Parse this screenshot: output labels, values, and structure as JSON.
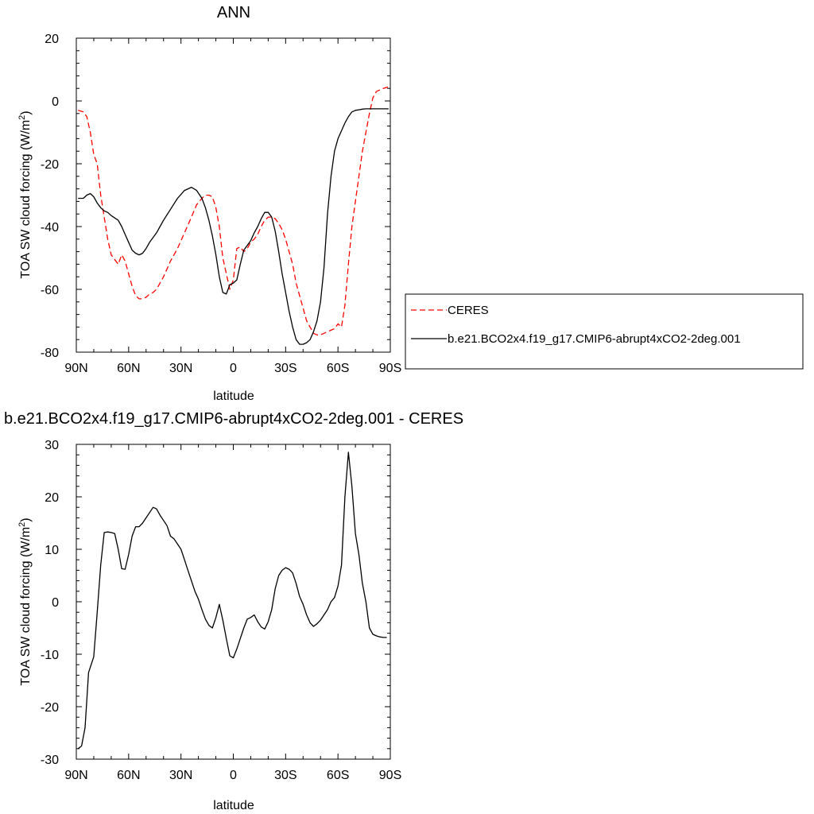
{
  "chart_data": [
    {
      "type": "line",
      "title": "ANN",
      "xlabel": "latitude",
      "ylabel": "TOA SW cloud forcing (W/m",
      "ylabel_sup": "2",
      "ylabel_close": ")",
      "xlim": [
        90,
        -90
      ],
      "ylim": [
        -80,
        20
      ],
      "x_ticks": [
        90,
        60,
        30,
        0,
        -30,
        -60,
        -90
      ],
      "x_tick_labels": [
        "90N",
        "60N",
        "30N",
        "0",
        "30S",
        "60S",
        "90S"
      ],
      "y_ticks": [
        -80,
        -60,
        -40,
        -20,
        0,
        20
      ],
      "y_tick_labels": [
        "-80",
        "-60",
        "-40",
        "-20",
        "0",
        "20"
      ],
      "series": [
        {
          "name": "CERES",
          "color": "#ff0000",
          "dash": "dashed",
          "x": [
            89,
            86,
            84,
            82,
            80,
            78,
            76,
            74,
            72,
            70,
            66,
            64,
            62,
            60,
            58,
            56,
            54,
            52,
            50,
            48,
            46,
            44,
            42,
            40,
            36,
            32,
            28,
            24,
            21,
            18,
            16,
            14,
            12,
            10,
            8,
            6,
            4,
            2,
            0,
            -2,
            -4,
            -6,
            -8,
            -10,
            -12,
            -14,
            -16,
            -18,
            -20,
            -22,
            -24,
            -26,
            -28,
            -30,
            -32,
            -34,
            -36,
            -38,
            -40,
            -42,
            -44,
            -46,
            -48,
            -50,
            -52,
            -54,
            -56,
            -58,
            -60,
            -62,
            -64,
            -66,
            -68,
            -70,
            -72,
            -74,
            -76,
            -78,
            -80,
            -82,
            -84,
            -86,
            -89
          ],
          "y": [
            -3,
            -3.5,
            -5,
            -10,
            -17,
            -20,
            -30,
            -37,
            -44,
            -49,
            -52,
            -49,
            -51,
            -55,
            -59,
            -62,
            -63,
            -63,
            -62.5,
            -61.5,
            -61,
            -60,
            -58,
            -56,
            -51,
            -47,
            -42,
            -37,
            -33,
            -31,
            -30,
            -30,
            -30.5,
            -34,
            -40,
            -50,
            -55,
            -60,
            -57,
            -47,
            -46.5,
            -48,
            -47,
            -45,
            -44,
            -42.5,
            -40,
            -38,
            -37,
            -37,
            -37.5,
            -39,
            -41,
            -44,
            -48,
            -52,
            -58,
            -62,
            -66,
            -70,
            -72,
            -74,
            -74.5,
            -74.5,
            -74,
            -73.5,
            -73,
            -72.5,
            -71,
            -72,
            -65,
            -52,
            -40,
            -32,
            -24,
            -16,
            -10,
            -4,
            1,
            3,
            3.5,
            4,
            4.5
          ]
        },
        {
          "name": "b.e21.BCO2x4.f19_g17.CMIP6-abrupt4xCO2-2deg.001",
          "color": "#000000",
          "dash": "solid",
          "x": [
            89,
            86,
            84,
            82,
            80,
            78,
            76,
            74,
            72,
            70,
            66,
            64,
            62,
            60,
            58,
            56,
            54,
            52,
            50,
            48,
            46,
            44,
            42,
            40,
            36,
            32,
            28,
            24,
            21,
            18,
            16,
            14,
            12,
            10,
            8,
            6,
            4,
            2,
            0,
            -2,
            -4,
            -6,
            -8,
            -10,
            -12,
            -14,
            -16,
            -18,
            -20,
            -22,
            -24,
            -26,
            -28,
            -30,
            -32,
            -34,
            -36,
            -38,
            -40,
            -42,
            -44,
            -46,
            -48,
            -50,
            -52,
            -54,
            -56,
            -58,
            -60,
            -62,
            -64,
            -66,
            -68,
            -70,
            -72,
            -74,
            -76,
            -78,
            -80,
            -82,
            -84,
            -86,
            -89
          ],
          "y": [
            -31,
            -31,
            -30,
            -29.5,
            -30.5,
            -32.5,
            -34,
            -35,
            -35.5,
            -36.5,
            -38,
            -40,
            -42.5,
            -45,
            -47.5,
            -48.5,
            -49,
            -48.5,
            -47,
            -45,
            -43.5,
            -42,
            -40,
            -38,
            -34.5,
            -31,
            -28.5,
            -27.5,
            -28.5,
            -31,
            -34,
            -38,
            -43,
            -49,
            -56,
            -61,
            -61.5,
            -58.5,
            -58,
            -57,
            -52,
            -47.5,
            -46,
            -44.5,
            -42,
            -40,
            -37.5,
            -35.5,
            -35.5,
            -37,
            -41.5,
            -48,
            -55,
            -61,
            -67,
            -72,
            -76,
            -77.5,
            -77.5,
            -77,
            -76,
            -73.5,
            -70,
            -64,
            -53,
            -36,
            -24,
            -16,
            -12,
            -9.5,
            -7,
            -5,
            -3.5,
            -3,
            -2.8,
            -2.6,
            -2.5,
            -2.5,
            -2.5,
            -2.5,
            -2.5,
            -2.5,
            -2.5
          ]
        }
      ],
      "legend": {
        "placement": "right"
      }
    },
    {
      "type": "line",
      "title": "b.e21.BCO2x4.f19_g17.CMIP6-abrupt4xCO2-2deg.001 - CERES",
      "xlabel": "latitude",
      "ylabel": "TOA SW cloud forcing (W/m",
      "ylabel_sup": "2",
      "ylabel_close": ")",
      "xlim": [
        90,
        -90
      ],
      "ylim": [
        -30,
        30
      ],
      "x_ticks": [
        90,
        60,
        30,
        0,
        -30,
        -60,
        -90
      ],
      "x_tick_labels": [
        "90N",
        "60N",
        "30N",
        "0",
        "30S",
        "60S",
        "90S"
      ],
      "y_ticks": [
        -30,
        -20,
        -10,
        0,
        10,
        20,
        30
      ],
      "y_tick_labels": [
        "-30",
        "-20",
        "-10",
        "0",
        "10",
        "20",
        "30"
      ],
      "series": [
        {
          "color": "#000000",
          "dash": "solid",
          "x": [
            89,
            87,
            85,
            83,
            80,
            78,
            76,
            74,
            72,
            70,
            68,
            66,
            64,
            62,
            60,
            58,
            56,
            54,
            52,
            50,
            48,
            46,
            44,
            42,
            40,
            38,
            36,
            34,
            32,
            30,
            28,
            26,
            24,
            22,
            20,
            18,
            16,
            14,
            12,
            10,
            8,
            6,
            4,
            2,
            0,
            -2,
            -4,
            -6,
            -8,
            -10,
            -12,
            -14,
            -16,
            -18,
            -20,
            -22,
            -24,
            -26,
            -28,
            -30,
            -32,
            -34,
            -36,
            -38,
            -40,
            -42,
            -44,
            -46,
            -48,
            -50,
            -52,
            -54,
            -56,
            -58,
            -60,
            -62,
            -64,
            -66,
            -68,
            -70,
            -72,
            -74,
            -76,
            -78,
            -80,
            -82,
            -84,
            -86,
            -88
          ],
          "y": [
            -28,
            -27.5,
            -24,
            -13.5,
            -10.5,
            -2,
            7,
            13.2,
            13.3,
            13.2,
            13,
            10,
            6.3,
            6.2,
            9,
            12.5,
            14.3,
            14.3,
            15,
            16,
            17,
            18,
            17.7,
            16.5,
            15.5,
            14.5,
            12.5,
            12,
            11,
            10,
            8,
            6,
            4,
            2,
            0.5,
            -1.5,
            -3.3,
            -4.5,
            -5,
            -3,
            -0.5,
            -3.5,
            -7,
            -10.3,
            -10.7,
            -9,
            -7,
            -5,
            -3.3,
            -3,
            -2.5,
            -3.8,
            -4.8,
            -5.2,
            -3.8,
            -1.5,
            2.5,
            5,
            6,
            6.5,
            6.2,
            5.5,
            3.5,
            1,
            -0.5,
            -2.5,
            -4,
            -4.7,
            -4.2,
            -3.5,
            -2.5,
            -1.5,
            0,
            0.8,
            3,
            7,
            20,
            28.5,
            22,
            13,
            9,
            3.5,
            0,
            -5,
            -6.2,
            -6.5,
            -6.7,
            -6.8,
            -6.8
          ]
        }
      ]
    }
  ]
}
